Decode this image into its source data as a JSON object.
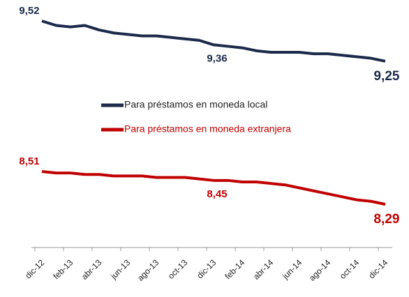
{
  "chart_data": {
    "type": "line",
    "categories": [
      "dic-12",
      null,
      "feb-13",
      null,
      "abr-13",
      null,
      "jun-13",
      null,
      "ago-13",
      null,
      "oct-13",
      null,
      "dic-13",
      null,
      "feb-14",
      null,
      "abr-14",
      null,
      "jun-14",
      null,
      "ago-14",
      null,
      "oct-14",
      null,
      "dic-14"
    ],
    "ylim": [
      8.0,
      9.6
    ],
    "series": [
      {
        "name": "Para préstamos en moneda local",
        "color": "#1b2a4a",
        "values": [
          9.52,
          9.49,
          9.48,
          9.49,
          9.46,
          9.44,
          9.43,
          9.42,
          9.42,
          9.41,
          9.4,
          9.39,
          9.36,
          9.35,
          9.34,
          9.32,
          9.31,
          9.31,
          9.31,
          9.3,
          9.3,
          9.29,
          9.28,
          9.27,
          9.25
        ],
        "value_labels": [
          "9,52",
          null,
          null,
          null,
          null,
          null,
          null,
          null,
          null,
          null,
          null,
          null,
          "9,36",
          null,
          null,
          null,
          null,
          null,
          null,
          null,
          null,
          null,
          null,
          null,
          "9,25"
        ]
      },
      {
        "name": "Para préstamos en moneda extranjera",
        "color": "#c00000",
        "values": [
          8.51,
          8.5,
          8.5,
          8.49,
          8.49,
          8.48,
          8.48,
          8.48,
          8.47,
          8.47,
          8.47,
          8.46,
          8.45,
          8.45,
          8.44,
          8.44,
          8.43,
          8.42,
          8.4,
          8.38,
          8.36,
          8.34,
          8.32,
          8.31,
          8.29
        ],
        "value_labels": [
          "8,51",
          null,
          null,
          null,
          null,
          null,
          null,
          null,
          null,
          null,
          null,
          null,
          "8,45",
          null,
          null,
          null,
          null,
          null,
          null,
          null,
          null,
          null,
          null,
          null,
          "8,29"
        ]
      }
    ]
  }
}
